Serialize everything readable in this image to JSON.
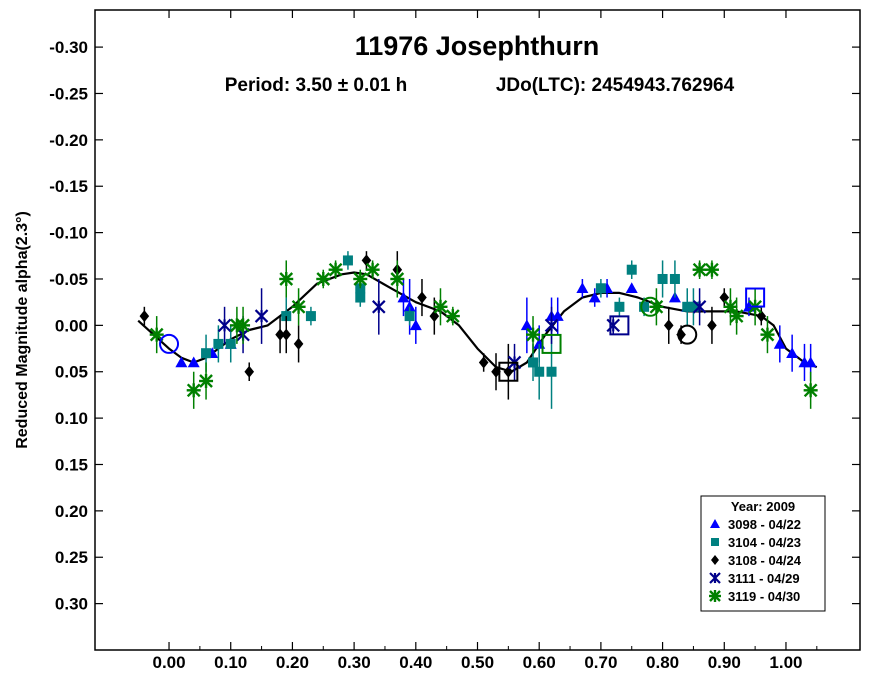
{
  "chart_data": {
    "type": "scatter",
    "title": "11976 Josephthurn",
    "period_text": "Period: 3.50 ± 0.01 h",
    "epoch_text": "JDo(LTC): 2454943.762964",
    "ylabel": "Reduced Magnitude alpha(2.3°)",
    "xlabel": "",
    "xlim": [
      -0.12,
      1.12
    ],
    "ylim": [
      0.35,
      -0.34
    ],
    "y_inverted": true,
    "grid": false,
    "x_ticks": [
      0.0,
      0.1,
      0.2,
      0.3,
      0.4,
      0.5,
      0.6,
      0.7,
      0.8,
      0.9,
      1.0
    ],
    "x_tick_labels": [
      "0.00",
      "0.10",
      "0.20",
      "0.30",
      "0.40",
      "0.50",
      "0.60",
      "0.70",
      "0.80",
      "0.90",
      "1.00"
    ],
    "y_ticks": [
      -0.3,
      -0.25,
      -0.2,
      -0.15,
      -0.1,
      -0.05,
      0.0,
      0.05,
      0.1,
      0.15,
      0.2,
      0.25,
      0.3
    ],
    "y_tick_labels": [
      "-0.30",
      "-0.25",
      "-0.20",
      "-0.15",
      "-0.10",
      "-0.05",
      "0.00",
      "0.05",
      "0.10",
      "0.15",
      "0.20",
      "0.25",
      "0.30"
    ],
    "legend": {
      "title": "Year: 2009",
      "placement": "bottom-right"
    },
    "series": [
      {
        "name": "3098 - 04/22",
        "marker": "triangle",
        "color": "#0000ff",
        "points": [
          {
            "x": 0.02,
            "y": 0.04,
            "err": 0.0
          },
          {
            "x": 0.04,
            "y": 0.04,
            "err": 0.0
          },
          {
            "x": 0.07,
            "y": 0.03,
            "err": 0.0
          },
          {
            "x": 0.1,
            "y": 0.02,
            "err": 0.0
          },
          {
            "x": 0.38,
            "y": -0.03,
            "err": 0.02
          },
          {
            "x": 0.39,
            "y": -0.02,
            "err": 0.03
          },
          {
            "x": 0.4,
            "y": 0.0,
            "err": 0.02
          },
          {
            "x": 0.58,
            "y": 0.0,
            "err": 0.03
          },
          {
            "x": 0.6,
            "y": 0.02,
            "err": 0.02
          },
          {
            "x": 0.62,
            "y": -0.01,
            "err": 0.02
          },
          {
            "x": 0.63,
            "y": -0.01,
            "err": 0.02
          },
          {
            "x": 0.67,
            "y": -0.04,
            "err": 0.01
          },
          {
            "x": 0.69,
            "y": -0.03,
            "err": 0.01
          },
          {
            "x": 0.71,
            "y": -0.04,
            "err": 0.01
          },
          {
            "x": 0.75,
            "y": -0.04,
            "err": 0.0
          },
          {
            "x": 0.82,
            "y": -0.03,
            "err": 0.0
          },
          {
            "x": 0.84,
            "y": -0.02,
            "err": 0.0
          },
          {
            "x": 0.94,
            "y": -0.02,
            "err": 0.01
          },
          {
            "x": 0.99,
            "y": 0.02,
            "err": 0.02
          },
          {
            "x": 1.01,
            "y": 0.03,
            "err": 0.02
          },
          {
            "x": 1.03,
            "y": 0.04,
            "err": 0.02
          },
          {
            "x": 1.04,
            "y": 0.04,
            "err": 0.02
          }
        ]
      },
      {
        "name": "3104 - 04/23",
        "marker": "square",
        "color": "#008080",
        "points": [
          {
            "x": 0.06,
            "y": 0.03,
            "err": 0.02
          },
          {
            "x": 0.08,
            "y": 0.02,
            "err": 0.02
          },
          {
            "x": 0.1,
            "y": 0.02,
            "err": 0.02
          },
          {
            "x": 0.19,
            "y": -0.01,
            "err": 0.02
          },
          {
            "x": 0.23,
            "y": -0.01,
            "err": 0.01
          },
          {
            "x": 0.29,
            "y": -0.07,
            "err": 0.01
          },
          {
            "x": 0.31,
            "y": -0.03,
            "err": 0.01
          },
          {
            "x": 0.31,
            "y": -0.04,
            "err": 0.01
          },
          {
            "x": 0.39,
            "y": -0.01,
            "err": 0.01
          },
          {
            "x": 0.59,
            "y": 0.04,
            "err": 0.02
          },
          {
            "x": 0.6,
            "y": 0.05,
            "err": 0.03
          },
          {
            "x": 0.62,
            "y": 0.05,
            "err": 0.04
          },
          {
            "x": 0.7,
            "y": -0.04,
            "err": 0.01
          },
          {
            "x": 0.73,
            "y": -0.02,
            "err": 0.01
          },
          {
            "x": 0.75,
            "y": -0.06,
            "err": 0.01
          },
          {
            "x": 0.77,
            "y": -0.02,
            "err": 0.01
          },
          {
            "x": 0.8,
            "y": -0.05,
            "err": 0.02
          },
          {
            "x": 0.82,
            "y": -0.05,
            "err": 0.02
          },
          {
            "x": 0.84,
            "y": -0.02,
            "err": 0.02
          },
          {
            "x": 0.85,
            "y": -0.02,
            "err": 0.02
          }
        ]
      },
      {
        "name": "3108 - 04/24",
        "marker": "diamond",
        "color": "#000000",
        "points": [
          {
            "x": -0.04,
            "y": -0.01,
            "err": 0.01
          },
          {
            "x": 0.13,
            "y": 0.05,
            "err": 0.01
          },
          {
            "x": 0.18,
            "y": 0.01,
            "err": 0.02
          },
          {
            "x": 0.19,
            "y": 0.01,
            "err": 0.02
          },
          {
            "x": 0.21,
            "y": 0.02,
            "err": 0.02
          },
          {
            "x": 0.32,
            "y": -0.07,
            "err": 0.01
          },
          {
            "x": 0.37,
            "y": -0.06,
            "err": 0.02
          },
          {
            "x": 0.41,
            "y": -0.03,
            "err": 0.02
          },
          {
            "x": 0.43,
            "y": -0.01,
            "err": 0.02
          },
          {
            "x": 0.51,
            "y": 0.04,
            "err": 0.01
          },
          {
            "x": 0.53,
            "y": 0.05,
            "err": 0.02
          },
          {
            "x": 0.55,
            "y": 0.05,
            "err": 0.03
          },
          {
            "x": 0.81,
            "y": 0.0,
            "err": 0.02
          },
          {
            "x": 0.83,
            "y": 0.01,
            "err": 0.01
          },
          {
            "x": 0.88,
            "y": 0.0,
            "err": 0.02
          },
          {
            "x": 0.9,
            "y": -0.03,
            "err": 0.01
          },
          {
            "x": 0.96,
            "y": -0.01,
            "err": 0.01
          }
        ]
      },
      {
        "name": "3111 - 04/29",
        "marker": "asterisk",
        "color": "#00008b",
        "points": [
          {
            "x": 0.09,
            "y": 0.0,
            "err": 0.02
          },
          {
            "x": 0.12,
            "y": 0.01,
            "err": 0.02
          },
          {
            "x": 0.15,
            "y": -0.01,
            "err": 0.03
          },
          {
            "x": 0.34,
            "y": -0.02,
            "err": 0.03
          },
          {
            "x": 0.56,
            "y": 0.04,
            "err": 0.02
          },
          {
            "x": 0.62,
            "y": 0.0,
            "err": 0.02
          },
          {
            "x": 0.72,
            "y": 0.0,
            "err": 0.01
          },
          {
            "x": 0.86,
            "y": -0.02,
            "err": 0.02
          }
        ]
      },
      {
        "name": "3119 - 04/30",
        "marker": "star",
        "color": "#008000",
        "points": [
          {
            "x": -0.02,
            "y": 0.01,
            "err": 0.02
          },
          {
            "x": 0.04,
            "y": 0.07,
            "err": 0.02
          },
          {
            "x": 0.06,
            "y": 0.06,
            "err": 0.02
          },
          {
            "x": 0.11,
            "y": 0.0,
            "err": 0.02
          },
          {
            "x": 0.12,
            "y": 0.0,
            "err": 0.02
          },
          {
            "x": 0.19,
            "y": -0.05,
            "err": 0.02
          },
          {
            "x": 0.21,
            "y": -0.02,
            "err": 0.02
          },
          {
            "x": 0.25,
            "y": -0.05,
            "err": 0.01
          },
          {
            "x": 0.27,
            "y": -0.06,
            "err": 0.01
          },
          {
            "x": 0.31,
            "y": -0.05,
            "err": 0.01
          },
          {
            "x": 0.33,
            "y": -0.06,
            "err": 0.01
          },
          {
            "x": 0.37,
            "y": -0.05,
            "err": 0.02
          },
          {
            "x": 0.44,
            "y": -0.02,
            "err": 0.02
          },
          {
            "x": 0.46,
            "y": -0.01,
            "err": 0.01
          },
          {
            "x": 0.59,
            "y": 0.01,
            "err": 0.02
          },
          {
            "x": 0.79,
            "y": -0.02,
            "err": 0.02
          },
          {
            "x": 0.86,
            "y": -0.06,
            "err": 0.01
          },
          {
            "x": 0.88,
            "y": -0.06,
            "err": 0.01
          },
          {
            "x": 0.91,
            "y": -0.02,
            "err": 0.02
          },
          {
            "x": 0.92,
            "y": -0.01,
            "err": 0.02
          },
          {
            "x": 0.95,
            "y": -0.02,
            "err": 0.02
          },
          {
            "x": 0.97,
            "y": 0.01,
            "err": 0.02
          },
          {
            "x": 1.04,
            "y": 0.07,
            "err": 0.02
          }
        ]
      }
    ],
    "open_markers": [
      {
        "x": 0.0,
        "y": 0.02,
        "shape": "circle",
        "color": "#0000ff"
      },
      {
        "x": 0.55,
        "y": 0.05,
        "shape": "square",
        "color": "#000000"
      },
      {
        "x": 0.62,
        "y": 0.02,
        "shape": "square",
        "color": "#008000"
      },
      {
        "x": 0.73,
        "y": 0.0,
        "shape": "square",
        "color": "#00008b"
      },
      {
        "x": 0.78,
        "y": -0.02,
        "shape": "circle",
        "color": "#008000"
      },
      {
        "x": 0.84,
        "y": 0.01,
        "shape": "circle",
        "color": "#000000"
      },
      {
        "x": 0.95,
        "y": -0.03,
        "shape": "square",
        "color": "#0000ff"
      }
    ],
    "fit_curve": {
      "x": [
        -0.05,
        0.0,
        0.02,
        0.04,
        0.06,
        0.08,
        0.1,
        0.13,
        0.16,
        0.2,
        0.24,
        0.28,
        0.3,
        0.32,
        0.36,
        0.4,
        0.44,
        0.47,
        0.5,
        0.53,
        0.555,
        0.58,
        0.61,
        0.64,
        0.67,
        0.7,
        0.73,
        0.76,
        0.8,
        0.84,
        0.88,
        0.92,
        0.96,
        0.98,
        1.0,
        1.03,
        1.05
      ],
      "y": [
        -0.005,
        0.025,
        0.035,
        0.04,
        0.035,
        0.025,
        0.015,
        0.005,
        0.0,
        -0.02,
        -0.045,
        -0.055,
        -0.057,
        -0.055,
        -0.04,
        -0.025,
        -0.015,
        0.0,
        0.025,
        0.045,
        0.05,
        0.04,
        0.01,
        -0.015,
        -0.03,
        -0.035,
        -0.035,
        -0.03,
        -0.02,
        -0.015,
        -0.015,
        -0.015,
        -0.01,
        0.0,
        0.025,
        0.04,
        0.045
      ]
    }
  }
}
